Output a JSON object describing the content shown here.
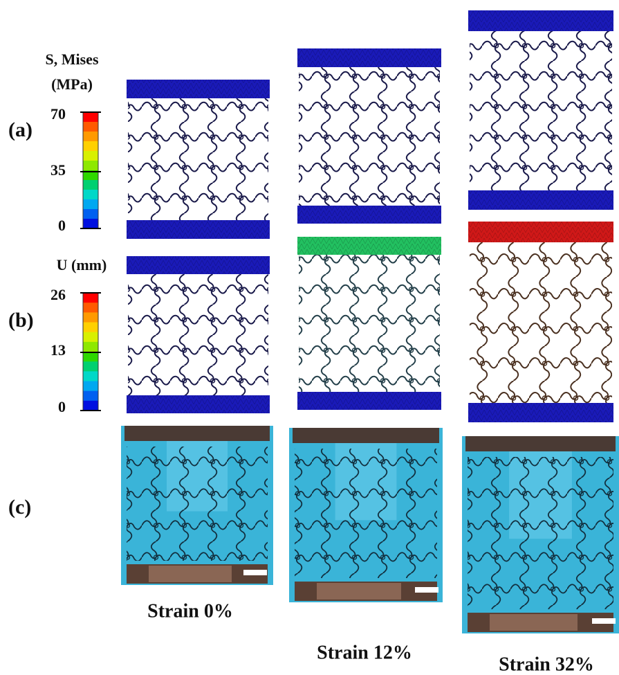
{
  "rows": [
    {
      "label": "(a)"
    },
    {
      "label": "(b)"
    },
    {
      "label": "(c)"
    }
  ],
  "legends": [
    {
      "title_lines": [
        "S, Mises",
        "(MPa)"
      ],
      "ticks": [
        70,
        35,
        0
      ]
    },
    {
      "title_lines": [
        "U (mm)"
      ],
      "ticks": [
        26,
        13,
        0
      ]
    }
  ],
  "captions": [
    "Strain 0%",
    "Strain 12%",
    "Strain 32%"
  ]
}
